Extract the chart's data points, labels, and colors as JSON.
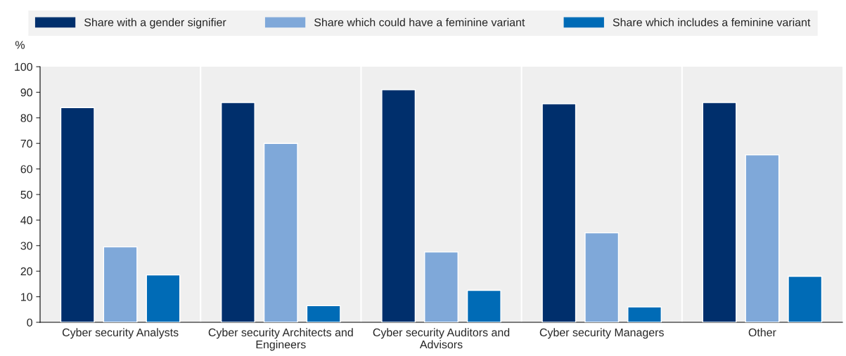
{
  "chart_data": {
    "type": "bar",
    "ylabel": "%",
    "categories": [
      "Cyber security Analysts",
      "Cyber security Architects and\nEngineers",
      "Cyber security Auditors and\nAdvisors",
      "Cyber security Managers",
      "Other"
    ],
    "series": [
      {
        "name": "Share with a gender signifier",
        "color": "#002f6c",
        "values": [
          84,
          86,
          91,
          85.5,
          86
        ]
      },
      {
        "name": "Share which could have a feminine variant",
        "color": "#7fa8d9",
        "values": [
          29.5,
          70,
          27.5,
          35,
          65.5
        ]
      },
      {
        "name": "Share which includes a feminine variant",
        "color": "#006bb6",
        "values": [
          18.5,
          6.5,
          12.5,
          6,
          18
        ]
      }
    ],
    "ylim": [
      0,
      100
    ],
    "yticks": [
      0,
      10,
      20,
      30,
      40,
      50,
      60,
      70,
      80,
      90,
      100
    ],
    "grid": "x",
    "legend": "top"
  }
}
